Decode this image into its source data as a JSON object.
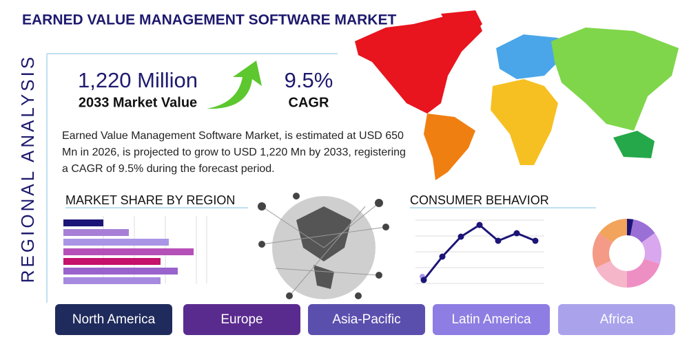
{
  "header": {
    "title": "EARNED VALUE MANAGEMENT SOFTWARE MARKET",
    "side_label": "REGIONAL ANALYSIS"
  },
  "stats": {
    "market_value": "1,220 Million",
    "market_value_caption": "2033 Market Value",
    "cagr": "9.5%",
    "cagr_caption": "CAGR"
  },
  "description": "Earned Value Management Software Market, is estimated at USD 650 Mn in 2026, is projected to grow to USD 1,220 Mn by 2033, registering a CAGR of 9.5% during the forecast period.",
  "market_share": {
    "type": "bar",
    "title": "MARKET SHARE BY REGION",
    "values": [
      58,
      95,
      153,
      189,
      141,
      166,
      141
    ],
    "colors": [
      "#1c1577",
      "#a77fd6",
      "#a995e6",
      "#b550b8",
      "#c5126a",
      "#9a62cc",
      "#a58ae0"
    ]
  },
  "consumer_behavior": {
    "type": "line",
    "title": "CONSUMER BEHAVIOR",
    "values": [
      8,
      42,
      71,
      88,
      65,
      76,
      65
    ],
    "color": "#1c1577"
  },
  "donut": {
    "type": "pie",
    "values": [
      3,
      12,
      15,
      20,
      18,
      17,
      15
    ],
    "colors": [
      "#1c1577",
      "#9a6fd6",
      "#d9a7ee",
      "#ee8fc4",
      "#f6b6c9",
      "#f49a86",
      "#f2a35c"
    ]
  },
  "regions": {
    "names": [
      "North America",
      "Europe",
      "Asia-Pacific",
      "Latin America",
      "Africa"
    ],
    "colors": [
      "#1f2b5c",
      "#5a2b8f",
      "#5b4fae",
      "#8e7de2",
      "#aaa3ec"
    ]
  }
}
